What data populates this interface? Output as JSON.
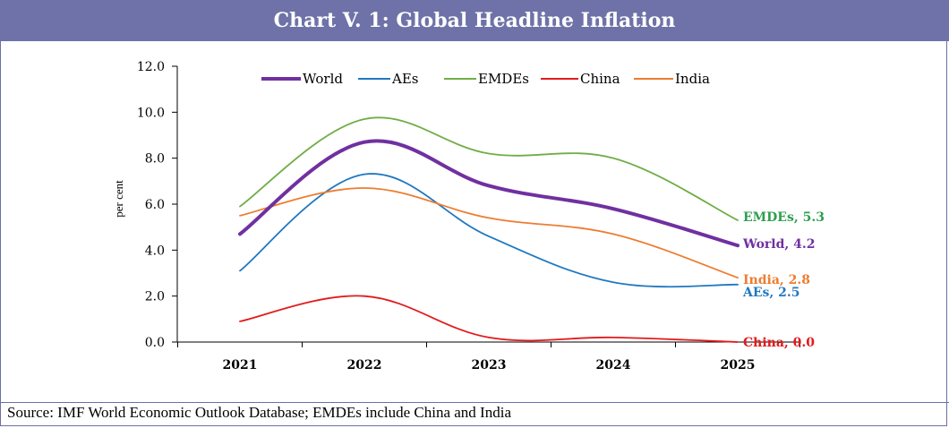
{
  "header": {
    "title": "Chart V. 1: Global Headline Inflation"
  },
  "footer": {
    "source": "Source: IMF World Economic Outlook Database; EMDEs include China and India"
  },
  "chart_data": {
    "type": "line",
    "title": "Chart V. 1: Global Headline Inflation",
    "xlabel": "",
    "ylabel": "per cent",
    "ylim": [
      0,
      12
    ],
    "yticks": [
      0,
      2,
      4,
      6,
      8,
      10,
      12
    ],
    "ytick_labels": [
      "0.0",
      "2.0",
      "4.0",
      "6.0",
      "8.0",
      "10.0",
      "12.0"
    ],
    "categories": [
      "2021",
      "2022",
      "2023",
      "2024",
      "2025"
    ],
    "legend_position": "top",
    "series": [
      {
        "name": "World",
        "color": "#7030a0",
        "values": [
          4.7,
          8.7,
          6.8,
          5.8,
          4.2
        ],
        "end_label": "World, 4.2",
        "bold": true
      },
      {
        "name": "AEs",
        "color": "#1f78c1",
        "values": [
          3.1,
          7.3,
          4.6,
          2.6,
          2.5
        ],
        "end_label": "AEs, 2.5",
        "bold": false
      },
      {
        "name": "EMDEs",
        "color": "#70ad47",
        "values": [
          5.9,
          9.7,
          8.2,
          8.0,
          5.3
        ],
        "end_label": "EMDEs, 5.3",
        "bold": false
      },
      {
        "name": "China",
        "color": "#e31a1c",
        "values": [
          0.9,
          2.0,
          0.2,
          0.2,
          0.0
        ],
        "end_label": "China, 0.0",
        "bold": false
      },
      {
        "name": "India",
        "color": "#ed7d31",
        "values": [
          5.5,
          6.7,
          5.4,
          4.7,
          2.8
        ],
        "end_label": "India, 2.8",
        "bold": false
      }
    ],
    "end_label_colors": {
      "EMDEs": "#2e9e4f",
      "World": "#7030a0",
      "India": "#ed7d31",
      "AEs": "#1f78c1",
      "China": "#e31a1c"
    }
  }
}
